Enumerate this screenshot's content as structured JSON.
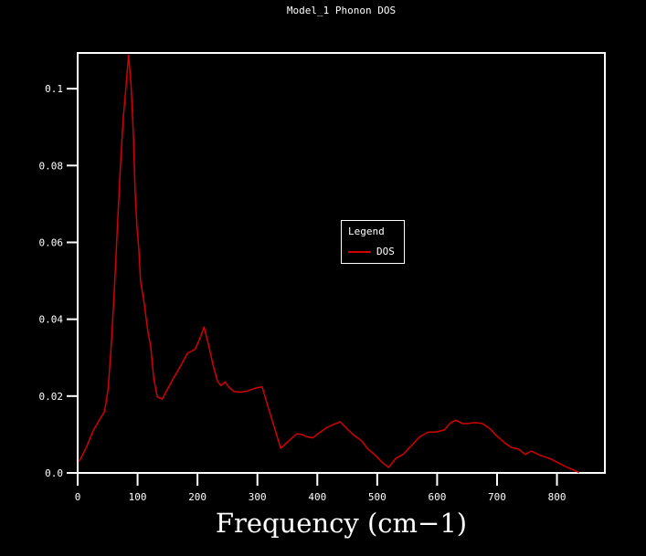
{
  "window": {
    "background": "#000000",
    "text_color": "#ffffff"
  },
  "chart_data": {
    "type": "line",
    "title": "Model_1 Phonon DOS",
    "xlabel": "Frequency (cm−1)",
    "ylabel": "",
    "xlim": [
      0,
      880
    ],
    "ylim": [
      0,
      0.1093
    ],
    "xticks": [
      "0",
      "100",
      "200",
      "300",
      "400",
      "500",
      "600",
      "700",
      "800"
    ],
    "xtick_values": [
      0,
      100,
      200,
      300,
      400,
      500,
      600,
      700,
      800
    ],
    "yticks": [
      "0.0",
      "0.02",
      "0.04",
      "0.06",
      "0.08",
      "0.1"
    ],
    "ytick_values": [
      0,
      0.02,
      0.04,
      0.06,
      0.08,
      0.1
    ],
    "grid": false,
    "axis_color": "#ffffff",
    "background": "#000000",
    "legend": {
      "title": "Legend",
      "position": "center-of-plot",
      "entries": [
        {
          "label": "DOS",
          "color": "#d40000"
        }
      ]
    },
    "series": [
      {
        "name": "DOS",
        "color": "#d40000",
        "points": [
          [
            2,
            0.003
          ],
          [
            6,
            0.004
          ],
          [
            14,
            0.0065
          ],
          [
            26,
            0.011
          ],
          [
            37,
            0.014
          ],
          [
            45,
            0.016
          ],
          [
            51,
            0.022
          ],
          [
            56,
            0.033
          ],
          [
            61,
            0.047
          ],
          [
            66,
            0.063
          ],
          [
            71,
            0.079
          ],
          [
            76,
            0.092
          ],
          [
            81,
            0.101
          ],
          [
            85,
            0.1088
          ],
          [
            89,
            0.101
          ],
          [
            93,
            0.088
          ],
          [
            96,
            0.073
          ],
          [
            99,
            0.064
          ],
          [
            102,
            0.0584
          ],
          [
            105,
            0.05
          ],
          [
            111,
            0.0442
          ],
          [
            117,
            0.037
          ],
          [
            122,
            0.0328
          ],
          [
            127,
            0.0245
          ],
          [
            133,
            0.0198
          ],
          [
            141,
            0.0192
          ],
          [
            149,
            0.0215
          ],
          [
            157,
            0.0238
          ],
          [
            171,
            0.0276
          ],
          [
            183,
            0.0311
          ],
          [
            196,
            0.0322
          ],
          [
            204,
            0.035
          ],
          [
            211,
            0.038
          ],
          [
            219,
            0.033
          ],
          [
            226,
            0.028
          ],
          [
            233,
            0.024
          ],
          [
            239,
            0.0227
          ],
          [
            246,
            0.0237
          ],
          [
            253,
            0.0222
          ],
          [
            261,
            0.0212
          ],
          [
            272,
            0.021
          ],
          [
            283,
            0.0213
          ],
          [
            295,
            0.022
          ],
          [
            308,
            0.0224
          ],
          [
            321,
            0.0155
          ],
          [
            339,
            0.0064
          ],
          [
            352,
            0.0083
          ],
          [
            366,
            0.0102
          ],
          [
            374,
            0.01
          ],
          [
            383,
            0.0094
          ],
          [
            392,
            0.0091
          ],
          [
            404,
            0.0105
          ],
          [
            416,
            0.0118
          ],
          [
            427,
            0.0126
          ],
          [
            438,
            0.0133
          ],
          [
            450,
            0.0114
          ],
          [
            461,
            0.0098
          ],
          [
            473,
            0.0085
          ],
          [
            484,
            0.0063
          ],
          [
            496,
            0.0047
          ],
          [
            508,
            0.0028
          ],
          [
            519,
            0.0014
          ],
          [
            531,
            0.0038
          ],
          [
            543,
            0.0048
          ],
          [
            557,
            0.0071
          ],
          [
            571,
            0.0094
          ],
          [
            585,
            0.0106
          ],
          [
            599,
            0.0107
          ],
          [
            612,
            0.0112
          ],
          [
            622,
            0.013
          ],
          [
            631,
            0.0137
          ],
          [
            643,
            0.0128
          ],
          [
            653,
            0.0129
          ],
          [
            663,
            0.0131
          ],
          [
            675,
            0.0129
          ],
          [
            689,
            0.0114
          ],
          [
            699,
            0.0097
          ],
          [
            713,
            0.0078
          ],
          [
            724,
            0.0066
          ],
          [
            736,
            0.0062
          ],
          [
            747,
            0.0048
          ],
          [
            757,
            0.0057
          ],
          [
            770,
            0.0047
          ],
          [
            790,
            0.0036
          ],
          [
            811,
            0.0019
          ],
          [
            837,
            0.0001
          ]
        ]
      }
    ]
  }
}
